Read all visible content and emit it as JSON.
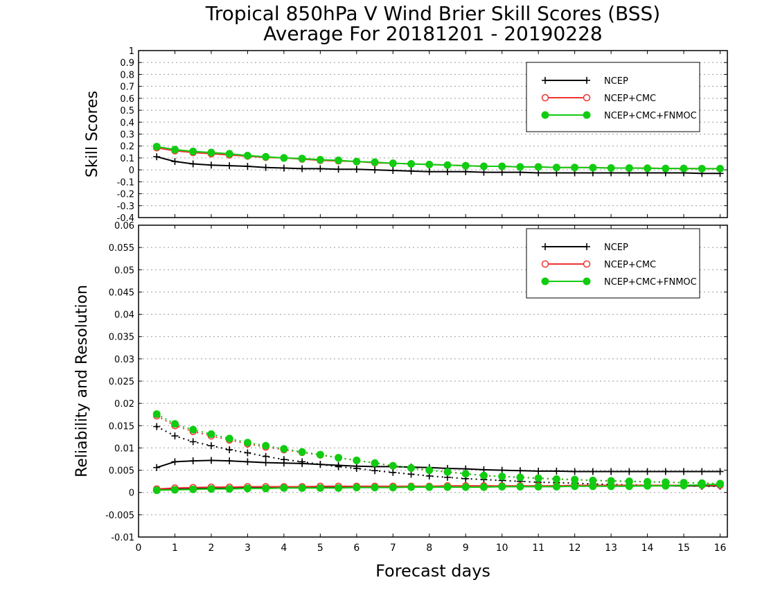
{
  "title_line1": "Tropical 850hPa V Wind Brier Skill Scores (BSS)",
  "title_line2": "Average For 20181201 - 20190228",
  "xlabel": "Forecast days",
  "colors": {
    "NCEP": "#000000",
    "NCEP+CMC": "#ee3333",
    "NCEP+CMC+FNMOC": "#11cc11"
  },
  "chart_data": [
    {
      "type": "line",
      "panel": "top",
      "ylabel": "Skill Scores",
      "xlim": [
        0,
        16.2
      ],
      "ylim": [
        -0.4,
        1
      ],
      "xticks": [
        0,
        1,
        2,
        3,
        4,
        5,
        6,
        7,
        8,
        9,
        10,
        11,
        12,
        13,
        14,
        15,
        16
      ],
      "yticks": [
        -0.4,
        -0.3,
        -0.2,
        -0.1,
        0,
        0.1,
        0.2,
        0.3,
        0.4,
        0.5,
        0.6,
        0.7,
        0.8,
        0.9,
        1
      ],
      "ytick_labels": [
        "-0.4",
        "-0.3",
        "-0.2",
        "-0.1",
        "0",
        "0.1",
        "0.2",
        "0.3",
        "0.4",
        "0.5",
        "0.6",
        "0.7",
        "0.8",
        "0.9",
        "1"
      ],
      "grid": true,
      "legend_position": "top-right",
      "x": [
        0.5,
        1,
        1.5,
        2,
        2.5,
        3,
        3.5,
        4,
        4.5,
        5,
        5.5,
        6,
        6.5,
        7,
        7.5,
        8,
        8.5,
        9,
        9.5,
        10,
        10.5,
        11,
        11.5,
        12,
        12.5,
        13,
        13.5,
        14,
        14.5,
        15,
        15.5,
        16
      ],
      "series": [
        {
          "name": "NCEP",
          "marker": "plus",
          "style": "solid",
          "values": [
            0.11,
            0.07,
            0.05,
            0.04,
            0.035,
            0.03,
            0.02,
            0.015,
            0.01,
            0.01,
            0.005,
            0.005,
            0.0,
            -0.005,
            -0.01,
            -0.015,
            -0.015,
            -0.015,
            -0.02,
            -0.02,
            -0.02,
            -0.025,
            -0.025,
            -0.025,
            -0.025,
            -0.025,
            -0.025,
            -0.025,
            -0.025,
            -0.025,
            -0.03,
            -0.03
          ]
        },
        {
          "name": "NCEP+CMC",
          "marker": "open-circle",
          "style": "solid",
          "values": [
            0.185,
            0.16,
            0.145,
            0.135,
            0.125,
            0.115,
            0.105,
            0.1,
            0.09,
            0.08,
            0.075,
            0.07,
            0.06,
            0.055,
            0.05,
            0.045,
            0.04,
            0.035,
            0.03,
            0.03,
            0.025,
            0.025,
            0.02,
            0.02,
            0.02,
            0.015,
            0.015,
            0.015,
            0.012,
            0.012,
            0.01,
            0.01
          ]
        },
        {
          "name": "NCEP+CMC+FNMOC",
          "marker": "filled-circle",
          "style": "solid",
          "values": [
            0.195,
            0.17,
            0.155,
            0.145,
            0.135,
            0.12,
            0.11,
            0.1,
            0.095,
            0.085,
            0.08,
            0.07,
            0.065,
            0.055,
            0.05,
            0.045,
            0.04,
            0.035,
            0.03,
            0.03,
            0.025,
            0.025,
            0.02,
            0.02,
            0.018,
            0.015,
            0.015,
            0.013,
            0.012,
            0.012,
            0.01,
            0.01
          ]
        }
      ]
    },
    {
      "type": "line",
      "panel": "bottom",
      "ylabel": "Reliability and Resolution",
      "xlim": [
        0,
        16.2
      ],
      "ylim": [
        -0.01,
        0.06
      ],
      "xticks": [
        0,
        1,
        2,
        3,
        4,
        5,
        6,
        7,
        8,
        9,
        10,
        11,
        12,
        13,
        14,
        15,
        16
      ],
      "yticks": [
        -0.01,
        -0.005,
        0,
        0.005,
        0.01,
        0.015,
        0.02,
        0.025,
        0.03,
        0.035,
        0.04,
        0.045,
        0.05,
        0.055,
        0.06
      ],
      "ytick_labels": [
        "-0.01",
        "-0.005",
        "0",
        "0.005",
        "0.01",
        "0.015",
        "0.02",
        "0.025",
        "0.03",
        "0.035",
        "0.04",
        "0.045",
        "0.05",
        "0.055",
        "0.06"
      ],
      "grid": true,
      "legend_position": "top-right",
      "x": [
        0.5,
        1,
        1.5,
        2,
        2.5,
        3,
        3.5,
        4,
        4.5,
        5,
        5.5,
        6,
        6.5,
        7,
        7.5,
        8,
        8.5,
        9,
        9.5,
        10,
        10.5,
        11,
        11.5,
        12,
        12.5,
        13,
        13.5,
        14,
        14.5,
        15,
        15.5,
        16
      ],
      "series": [
        {
          "name": "NCEP",
          "marker": "plus",
          "style": "dotted",
          "values": [
            0.0148,
            0.0127,
            0.0114,
            0.0105,
            0.0096,
            0.0089,
            0.0081,
            0.0074,
            0.0069,
            0.0063,
            0.0058,
            0.0054,
            0.0049,
            0.0045,
            0.0041,
            0.0037,
            0.0034,
            0.0031,
            0.0029,
            0.0027,
            0.0025,
            0.0023,
            0.0022,
            0.0021,
            0.0019,
            0.0018,
            0.0017,
            0.0016,
            0.0015,
            0.0015,
            0.0014,
            0.0014
          ]
        },
        {
          "name": "NCEP",
          "marker": "plus",
          "style": "solid",
          "values": [
            0.0056,
            0.0069,
            0.0071,
            0.0072,
            0.0071,
            0.0069,
            0.0067,
            0.0066,
            0.0065,
            0.0063,
            0.0061,
            0.0059,
            0.0058,
            0.0058,
            0.0057,
            0.0056,
            0.0054,
            0.0053,
            0.0051,
            0.005,
            0.0049,
            0.0048,
            0.0048,
            0.0047,
            0.0047,
            0.0047,
            0.0047,
            0.0047,
            0.0047,
            0.0047,
            0.0047,
            0.0047
          ]
        },
        {
          "name": "NCEP",
          "marker": "plus",
          "style": "solid",
          "values": [
            0.0006,
            0.0008,
            0.0009,
            0.001,
            0.001,
            0.0011,
            0.0011,
            0.0012,
            0.0012,
            0.0012,
            0.0012,
            0.0012,
            0.0013,
            0.0013,
            0.0013,
            0.0013,
            0.0014,
            0.0014,
            0.0014,
            0.0014,
            0.0014,
            0.0014,
            0.0015,
            0.0015,
            0.0015,
            0.0015,
            0.0015,
            0.0015,
            0.0015,
            0.0015,
            0.0015,
            0.0015
          ]
        },
        {
          "name": "NCEP+CMC",
          "marker": "open-circle",
          "style": "dotted",
          "values": [
            0.0172,
            0.015,
            0.0137,
            0.0127,
            0.0118,
            0.0109,
            0.0102,
            0.0096,
            0.009,
            0.0084,
            0.0078,
            0.0072,
            0.0066,
            0.006,
            0.0055,
            0.005,
            0.0046,
            0.0042,
            0.0038,
            0.0036,
            0.0034,
            0.0032,
            0.003,
            0.0029,
            0.0027,
            0.0026,
            0.0025,
            0.0024,
            0.0023,
            0.0022,
            0.0021,
            0.002
          ]
        },
        {
          "name": "NCEP+CMC",
          "marker": "open-circle",
          "style": "solid",
          "values": [
            0.0008,
            0.001,
            0.0011,
            0.0012,
            0.0012,
            0.0013,
            0.0013,
            0.0013,
            0.0013,
            0.0014,
            0.0014,
            0.0014,
            0.0014,
            0.0014,
            0.0014,
            0.0014,
            0.0015,
            0.0015,
            0.0015,
            0.0015,
            0.0015,
            0.0015,
            0.0015,
            0.0016,
            0.0016,
            0.0016,
            0.0016,
            0.0016,
            0.0016,
            0.0016,
            0.0016,
            0.0016
          ]
        },
        {
          "name": "NCEP+CMC+FNMOC",
          "marker": "filled-circle",
          "style": "dotted",
          "values": [
            0.0176,
            0.0154,
            0.0141,
            0.0131,
            0.0121,
            0.0112,
            0.0105,
            0.0098,
            0.0091,
            0.0085,
            0.0078,
            0.0072,
            0.0066,
            0.006,
            0.0055,
            0.005,
            0.0046,
            0.0042,
            0.0038,
            0.0036,
            0.0034,
            0.0032,
            0.003,
            0.0029,
            0.0027,
            0.0026,
            0.0025,
            0.0024,
            0.0023,
            0.0022,
            0.0021,
            0.002
          ]
        },
        {
          "name": "NCEP+CMC+FNMOC",
          "marker": "filled-circle",
          "style": "solid",
          "values": [
            0.0005,
            0.0006,
            0.0007,
            0.0008,
            0.0008,
            0.0009,
            0.0009,
            0.001,
            0.001,
            0.001,
            0.001,
            0.0011,
            0.0011,
            0.0011,
            0.0012,
            0.0012,
            0.0012,
            0.0012,
            0.0012,
            0.0013,
            0.0013,
            0.0013,
            0.0013,
            0.0014,
            0.0014,
            0.0014,
            0.0014,
            0.0015,
            0.0015,
            0.0016,
            0.0017,
            0.0019
          ]
        }
      ]
    }
  ],
  "legend": [
    "NCEP",
    "NCEP+CMC",
    "NCEP+CMC+FNMOC"
  ]
}
